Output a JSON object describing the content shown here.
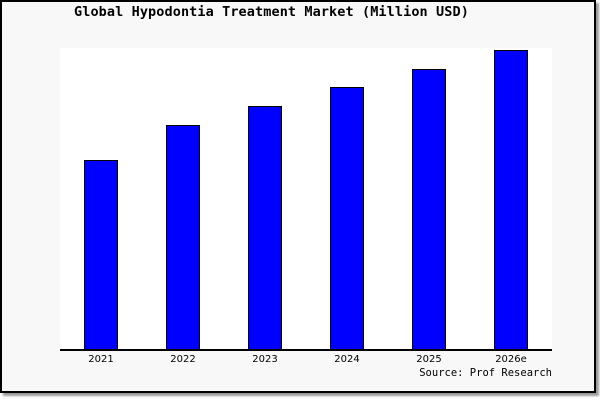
{
  "window": {
    "outer_background": "#ffffff",
    "frame_border_color": "#000000",
    "frame_background": "#f8f8f8",
    "shadow_color": "#9a9a9a"
  },
  "chart_data": {
    "type": "bar",
    "title": "Global Hypodontia Treatment Market (Million USD)",
    "categories": [
      "2021",
      "2022",
      "2023",
      "2024",
      "2025",
      "2026e"
    ],
    "values": [
      62.7,
      74.6,
      80.9,
      87.2,
      93.0,
      99.3
    ],
    "value_note": "y-axis shows no ticks or numeric labels; values are relative bar heights as % of plot height",
    "xlabel": "",
    "ylabel": "",
    "ylim": [
      0,
      100
    ],
    "grid": false,
    "legend": null,
    "bar_color": "#0000ff",
    "bar_border_color": "#000000",
    "plot_background": "#ffffff",
    "axis_line_color": "#000000"
  },
  "source": {
    "label": "Source: Prof Research"
  }
}
